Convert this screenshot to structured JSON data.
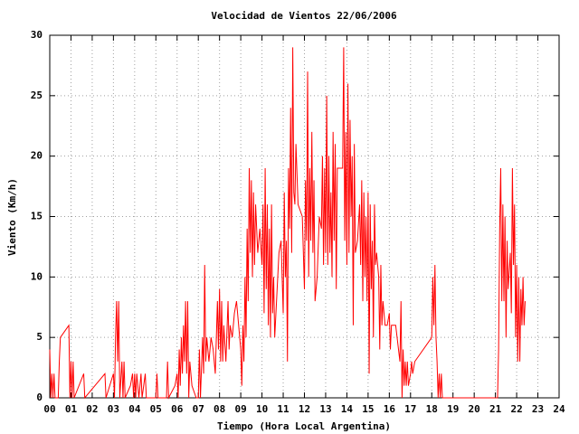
{
  "chart_data": {
    "type": "line",
    "title": "Velocidad de Vientos 22/06/2006",
    "x_label": "Tiempo (Hora Local Argentina)",
    "y_label": "Viento (Km/h)",
    "color": "#ff0000",
    "grid": true,
    "xlim": [
      0,
      24
    ],
    "ylim": [
      0,
      30
    ],
    "xticks": [
      {
        "value": 0,
        "label": "00"
      },
      {
        "value": 1,
        "label": "01"
      },
      {
        "value": 2,
        "label": "02"
      },
      {
        "value": 3,
        "label": "03"
      },
      {
        "value": 4,
        "label": "04"
      },
      {
        "value": 5,
        "label": "05"
      },
      {
        "value": 6,
        "label": "06"
      },
      {
        "value": 7,
        "label": "07"
      },
      {
        "value": 8,
        "label": "08"
      },
      {
        "value": 9,
        "label": "09"
      },
      10,
      11,
      12,
      13,
      14,
      15,
      16,
      17,
      18,
      19,
      20,
      21,
      22,
      23,
      24
    ],
    "yticks": [
      0,
      5,
      10,
      15,
      20,
      25,
      30
    ],
    "x": [
      0.0,
      0.05,
      0.1,
      0.15,
      0.2,
      0.25,
      0.4,
      0.45,
      0.5,
      0.9,
      0.95,
      1.0,
      1.05,
      1.1,
      1.15,
      1.6,
      1.65,
      2.6,
      2.65,
      3.0,
      3.05,
      3.1,
      3.15,
      3.2,
      3.25,
      3.3,
      3.4,
      3.45,
      3.5,
      3.55,
      3.8,
      3.9,
      3.95,
      4.0,
      4.05,
      4.1,
      4.2,
      4.3,
      4.35,
      4.5,
      4.55,
      5.0,
      5.05,
      5.1,
      5.5,
      5.55,
      5.6,
      5.9,
      6.0,
      6.05,
      6.1,
      6.15,
      6.2,
      6.25,
      6.3,
      6.35,
      6.4,
      6.45,
      6.5,
      6.55,
      6.6,
      6.7,
      6.9,
      7.0,
      7.05,
      7.1,
      7.2,
      7.25,
      7.3,
      7.35,
      7.4,
      7.5,
      7.6,
      7.7,
      7.8,
      7.9,
      7.95,
      8.0,
      8.05,
      8.1,
      8.15,
      8.2,
      8.3,
      8.4,
      8.45,
      8.5,
      8.6,
      8.7,
      8.8,
      9.0,
      9.05,
      9.1,
      9.15,
      9.2,
      9.25,
      9.3,
      9.35,
      9.4,
      9.45,
      9.5,
      9.55,
      9.6,
      9.65,
      9.7,
      9.8,
      9.9,
      10.0,
      10.05,
      10.1,
      10.15,
      10.2,
      10.25,
      10.3,
      10.35,
      10.4,
      10.45,
      10.5,
      10.55,
      10.6,
      10.8,
      10.9,
      11.0,
      11.05,
      11.1,
      11.15,
      11.2,
      11.25,
      11.3,
      11.35,
      11.4,
      11.45,
      11.5,
      11.55,
      11.6,
      11.7,
      11.9,
      12.0,
      12.05,
      12.1,
      12.15,
      12.2,
      12.25,
      12.3,
      12.35,
      12.4,
      12.45,
      12.5,
      12.6,
      12.7,
      12.8,
      12.85,
      12.9,
      12.95,
      13.0,
      13.05,
      13.1,
      13.15,
      13.2,
      13.25,
      13.3,
      13.35,
      13.4,
      13.45,
      13.5,
      13.55,
      13.8,
      13.85,
      13.9,
      13.95,
      14.0,
      14.05,
      14.1,
      14.15,
      14.2,
      14.25,
      14.3,
      14.35,
      14.4,
      14.5,
      14.6,
      14.65,
      14.7,
      14.75,
      14.8,
      14.85,
      14.9,
      14.95,
      15.0,
      15.05,
      15.1,
      15.15,
      15.2,
      15.25,
      15.3,
      15.35,
      15.4,
      15.5,
      15.55,
      15.6,
      15.65,
      15.7,
      15.8,
      15.9,
      16.0,
      16.05,
      16.1,
      16.2,
      16.3,
      16.5,
      16.55,
      16.6,
      16.65,
      16.7,
      16.75,
      16.8,
      16.85,
      16.9,
      17.0,
      17.05,
      17.1,
      17.2,
      18.0,
      18.05,
      18.1,
      18.15,
      18.2,
      18.25,
      18.3,
      18.35,
      18.4,
      18.45,
      18.5,
      21.1,
      21.15,
      21.2,
      21.25,
      21.3,
      21.35,
      21.4,
      21.45,
      21.5,
      21.55,
      21.6,
      21.7,
      21.75,
      21.8,
      21.85,
      21.9,
      21.95,
      22.0,
      22.05,
      22.1,
      22.15,
      22.2,
      22.25,
      22.3,
      22.35,
      22.4
    ],
    "values": [
      4,
      0,
      2,
      0,
      2,
      0,
      0,
      3,
      5,
      6,
      0,
      3,
      0,
      3,
      0,
      2,
      0,
      2,
      0,
      2,
      0,
      5,
      8,
      3,
      8,
      0,
      3,
      0,
      3,
      0,
      1,
      2,
      0,
      2,
      0,
      2,
      0,
      2,
      0,
      2,
      0,
      0,
      2,
      0,
      0,
      3,
      0,
      1,
      2,
      0,
      4,
      1,
      5,
      2,
      6,
      3,
      8,
      2,
      8,
      0,
      3,
      1,
      0,
      0,
      4,
      0,
      5,
      2,
      11,
      3,
      5,
      3,
      5,
      4,
      2,
      8,
      4,
      9,
      3,
      8,
      3,
      6,
      3,
      8,
      4,
      6,
      5,
      7,
      8,
      4,
      1,
      6,
      3,
      10,
      5,
      14,
      8,
      19,
      12,
      18,
      10,
      17,
      11,
      16,
      12,
      14,
      11,
      16,
      7,
      19,
      9,
      16,
      6,
      14,
      5,
      16,
      7,
      10,
      5,
      12,
      13,
      7,
      17,
      10,
      13,
      3,
      19,
      14,
      24,
      12,
      29,
      17,
      16,
      21,
      16,
      15,
      9,
      18,
      13,
      27,
      10,
      19,
      13,
      22,
      12,
      18,
      8,
      10,
      15,
      14,
      20,
      11,
      19,
      12,
      25,
      11,
      20,
      12,
      17,
      10,
      22,
      13,
      21,
      9,
      19,
      19,
      29,
      13,
      22,
      11,
      26,
      12,
      23,
      15,
      20,
      6,
      21,
      12,
      13,
      16,
      11,
      18,
      8,
      17,
      10,
      15,
      8,
      17,
      2,
      16,
      9,
      13,
      5,
      16,
      11,
      12,
      10,
      4,
      11,
      6,
      8,
      6,
      6,
      7,
      4,
      6,
      6,
      6,
      3,
      8,
      0,
      4,
      1,
      3,
      1,
      3,
      1,
      2,
      3,
      2,
      3,
      5,
      10,
      6,
      11,
      5,
      3,
      0,
      2,
      0,
      2,
      0,
      0,
      4,
      14,
      19,
      8,
      16,
      8,
      15,
      5,
      13,
      9,
      12,
      7,
      19,
      11,
      16,
      5,
      11,
      3,
      10,
      3,
      9,
      6,
      10,
      6,
      8
    ]
  }
}
